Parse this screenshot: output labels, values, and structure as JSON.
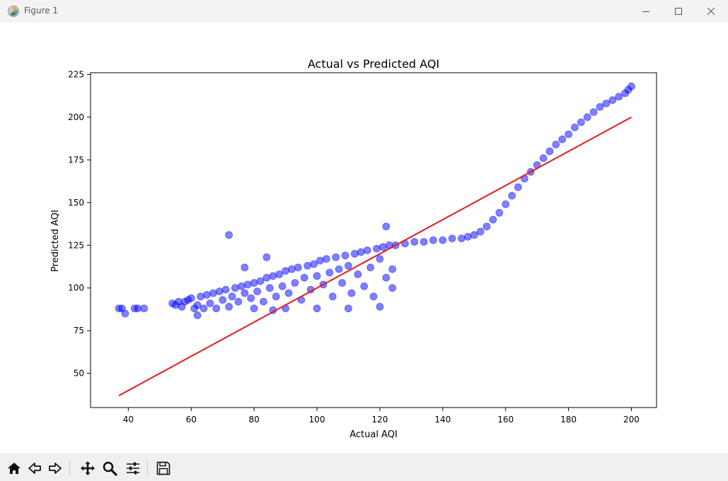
{
  "window": {
    "title": "Figure 1",
    "controls": {
      "minimize": "minimize-icon",
      "maximize": "maximize-icon",
      "close": "close-icon"
    }
  },
  "toolbar": {
    "buttons": [
      {
        "name": "home-button",
        "icon": "home-icon"
      },
      {
        "name": "back-button",
        "icon": "arrow-left-icon"
      },
      {
        "name": "forward-button",
        "icon": "arrow-right-icon"
      },
      {
        "name": "pan-button",
        "icon": "move-icon"
      },
      {
        "name": "zoom-button",
        "icon": "magnifier-icon"
      },
      {
        "name": "configure-subplots-button",
        "icon": "sliders-icon"
      },
      {
        "name": "save-button",
        "icon": "floppy-disk-icon"
      }
    ]
  },
  "chart_data": {
    "type": "scatter",
    "title": "Actual vs Predicted AQI",
    "xlabel": "Actual AQI",
    "ylabel": "Predicted AQI",
    "xlim": [
      28,
      208
    ],
    "ylim": [
      30,
      226
    ],
    "xticks": [
      40,
      60,
      80,
      100,
      120,
      140,
      160,
      180,
      200
    ],
    "yticks": [
      50,
      75,
      100,
      125,
      150,
      175,
      200,
      225
    ],
    "grid": false,
    "legend": "none",
    "colors": {
      "points": "#0000ff",
      "line": "#e41a1c",
      "axis": "#000000"
    },
    "point_alpha": 0.5,
    "reference_line": {
      "x": [
        37,
        200
      ],
      "y": [
        37,
        200
      ]
    },
    "points": [
      [
        37,
        88
      ],
      [
        38,
        88
      ],
      [
        39,
        85
      ],
      [
        42,
        88
      ],
      [
        43,
        88
      ],
      [
        45,
        88
      ],
      [
        54,
        91
      ],
      [
        55,
        90
      ],
      [
        56,
        92
      ],
      [
        57,
        89
      ],
      [
        58,
        92
      ],
      [
        59,
        93
      ],
      [
        60,
        94
      ],
      [
        61,
        88
      ],
      [
        62,
        84
      ],
      [
        62,
        90
      ],
      [
        63,
        95
      ],
      [
        64,
        88
      ],
      [
        65,
        96
      ],
      [
        66,
        91
      ],
      [
        67,
        97
      ],
      [
        68,
        88
      ],
      [
        69,
        98
      ],
      [
        70,
        93
      ],
      [
        71,
        99
      ],
      [
        72,
        89
      ],
      [
        72,
        131
      ],
      [
        73,
        95
      ],
      [
        74,
        100
      ],
      [
        75,
        92
      ],
      [
        76,
        101
      ],
      [
        77,
        97
      ],
      [
        77,
        112
      ],
      [
        78,
        102
      ],
      [
        79,
        94
      ],
      [
        80,
        103
      ],
      [
        80,
        88
      ],
      [
        81,
        98
      ],
      [
        82,
        104
      ],
      [
        83,
        92
      ],
      [
        84,
        106
      ],
      [
        84,
        118
      ],
      [
        85,
        100
      ],
      [
        86,
        107
      ],
      [
        86,
        87
      ],
      [
        87,
        95
      ],
      [
        88,
        108
      ],
      [
        89,
        101
      ],
      [
        90,
        110
      ],
      [
        90,
        88
      ],
      [
        91,
        97
      ],
      [
        92,
        111
      ],
      [
        93,
        103
      ],
      [
        94,
        112
      ],
      [
        95,
        93
      ],
      [
        96,
        106
      ],
      [
        97,
        113
      ],
      [
        98,
        99
      ],
      [
        99,
        114
      ],
      [
        100,
        107
      ],
      [
        100,
        88
      ],
      [
        101,
        116
      ],
      [
        102,
        102
      ],
      [
        103,
        117
      ],
      [
        104,
        109
      ],
      [
        105,
        95
      ],
      [
        106,
        118
      ],
      [
        107,
        111
      ],
      [
        108,
        103
      ],
      [
        109,
        119
      ],
      [
        110,
        113
      ],
      [
        110,
        88
      ],
      [
        111,
        97
      ],
      [
        112,
        120
      ],
      [
        113,
        108
      ],
      [
        114,
        121
      ],
      [
        115,
        101
      ],
      [
        116,
        122
      ],
      [
        117,
        112
      ],
      [
        118,
        95
      ],
      [
        119,
        123
      ],
      [
        120,
        117
      ],
      [
        120,
        89
      ],
      [
        121,
        124
      ],
      [
        122,
        106
      ],
      [
        122,
        136
      ],
      [
        123,
        125
      ],
      [
        124,
        111
      ],
      [
        124,
        100
      ],
      [
        125,
        125
      ],
      [
        128,
        126
      ],
      [
        131,
        127
      ],
      [
        134,
        127
      ],
      [
        137,
        128
      ],
      [
        140,
        128
      ],
      [
        143,
        129
      ],
      [
        146,
        129
      ],
      [
        148,
        130
      ],
      [
        150,
        131
      ],
      [
        152,
        133
      ],
      [
        154,
        136
      ],
      [
        156,
        140
      ],
      [
        158,
        144
      ],
      [
        160,
        149
      ],
      [
        162,
        154
      ],
      [
        164,
        159
      ],
      [
        166,
        164
      ],
      [
        168,
        168
      ],
      [
        170,
        172
      ],
      [
        172,
        176
      ],
      [
        174,
        180
      ],
      [
        176,
        184
      ],
      [
        178,
        187
      ],
      [
        180,
        190
      ],
      [
        182,
        194
      ],
      [
        184,
        197
      ],
      [
        186,
        200
      ],
      [
        188,
        203
      ],
      [
        190,
        206
      ],
      [
        192,
        208
      ],
      [
        194,
        210
      ],
      [
        196,
        212
      ],
      [
        198,
        214
      ],
      [
        199,
        216
      ],
      [
        200,
        218
      ]
    ]
  }
}
